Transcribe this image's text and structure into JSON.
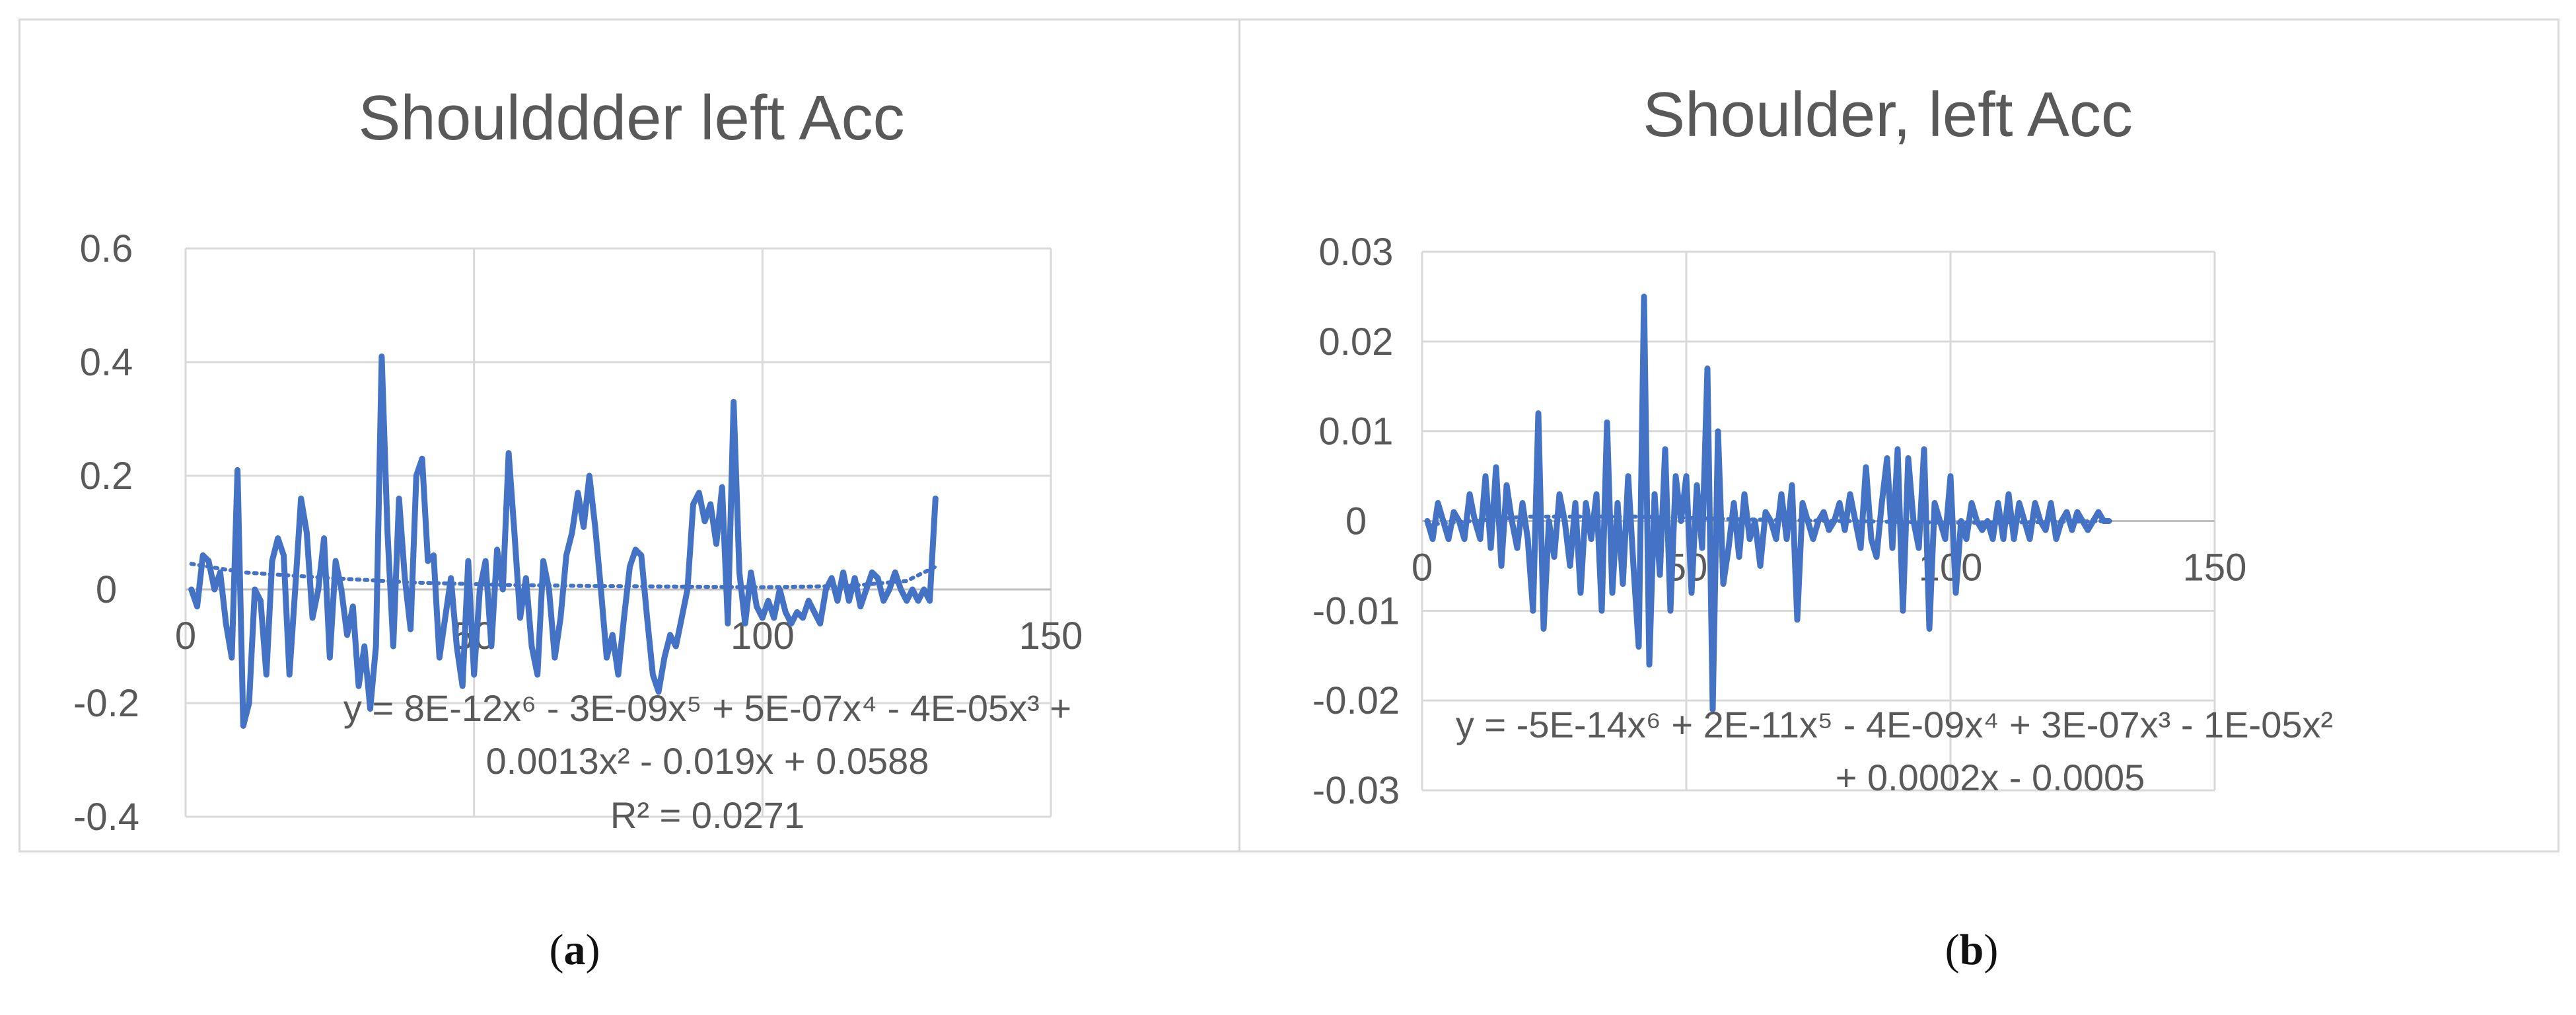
{
  "colors": {
    "series": "#4472c4",
    "grid": "#d9d9d9",
    "text": "#595959",
    "title": "#595959"
  },
  "chart_data": [
    {
      "type": "line",
      "title": "Shoulddder left  Acc",
      "ylim": [
        -0.4,
        0.6
      ],
      "xlim": [
        0,
        150
      ],
      "yticks": [
        "0.6",
        "0.4",
        "0.2",
        "0",
        "-0.2",
        "-0.4"
      ],
      "xticks": [
        "0",
        "50",
        "100",
        "150"
      ],
      "grid": "vertical and horizontal",
      "trendline": {
        "type": "polynomial-6",
        "style": "dotted",
        "equation_line1": "y = 8E-12x⁶ - 3E-09x⁵ + 5E-07x⁴ - 4E-05x³ +",
        "equation_line2": "0.0013x² - 0.019x + 0.0588",
        "r2": "R² = 0.0271",
        "x": [
          1,
          10,
          25,
          40,
          55,
          70,
          85,
          100,
          115,
          125,
          130
        ],
        "y": [
          0.045,
          0.03,
          0.02,
          0.012,
          0.008,
          0.006,
          0.005,
          0.004,
          0.006,
          0.015,
          0.04
        ]
      },
      "series": [
        {
          "x": [
            1,
            2,
            3,
            4,
            5,
            6,
            7,
            8,
            9,
            10,
            11,
            12,
            13,
            14,
            15,
            16,
            17,
            18,
            19,
            20,
            21,
            22,
            23,
            24,
            25,
            26,
            27,
            28,
            29,
            30,
            31,
            32,
            33,
            34,
            35,
            36,
            37,
            38,
            39,
            40,
            41,
            42,
            43,
            44,
            45,
            46,
            47,
            48,
            49,
            50,
            51,
            52,
            53,
            54,
            55,
            56,
            57,
            58,
            59,
            60,
            61,
            62,
            63,
            64,
            65,
            66,
            67,
            68,
            69,
            70,
            71,
            72,
            73,
            74,
            75,
            76,
            77,
            78,
            79,
            80,
            81,
            82,
            83,
            84,
            85,
            86,
            87,
            88,
            89,
            90,
            91,
            92,
            93,
            94,
            95,
            96,
            97,
            98,
            99,
            100,
            101,
            102,
            103,
            104,
            105,
            106,
            107,
            108,
            109,
            110,
            111,
            112,
            113,
            114,
            115,
            116,
            117,
            118,
            119,
            120,
            121,
            122,
            123,
            124,
            125,
            126,
            127,
            128,
            129,
            130
          ],
          "y": [
            0.0,
            -0.03,
            0.06,
            0.05,
            0.0,
            0.03,
            -0.06,
            -0.12,
            0.21,
            -0.24,
            -0.2,
            0.0,
            -0.02,
            -0.15,
            0.05,
            0.09,
            0.06,
            -0.15,
            0.0,
            0.16,
            0.1,
            -0.05,
            0.0,
            0.09,
            -0.12,
            0.05,
            0.0,
            -0.08,
            -0.03,
            -0.17,
            -0.1,
            -0.21,
            -0.1,
            0.41,
            0.1,
            -0.1,
            0.16,
            0.02,
            -0.07,
            0.2,
            0.23,
            0.05,
            0.06,
            -0.12,
            -0.05,
            0.02,
            -0.1,
            -0.17,
            0.05,
            -0.15,
            0.0,
            0.05,
            -0.1,
            0.07,
            0.0,
            0.24,
            0.1,
            -0.05,
            0.02,
            -0.1,
            -0.15,
            0.05,
            0.0,
            -0.12,
            -0.05,
            0.06,
            0.1,
            0.17,
            0.11,
            0.2,
            0.11,
            0.0,
            -0.12,
            -0.08,
            -0.15,
            -0.05,
            0.04,
            0.07,
            0.06,
            -0.05,
            -0.15,
            -0.18,
            -0.12,
            -0.08,
            -0.1,
            -0.05,
            0.0,
            0.15,
            0.17,
            0.12,
            0.15,
            0.08,
            0.18,
            -0.06,
            0.33,
            0.03,
            -0.06,
            0.03,
            -0.03,
            -0.05,
            -0.02,
            -0.05,
            0.0,
            -0.04,
            -0.06,
            -0.04,
            -0.05,
            -0.02,
            -0.04,
            -0.06,
            0.0,
            0.02,
            -0.02,
            0.03,
            -0.02,
            0.02,
            -0.03,
            0.0,
            0.03,
            0.02,
            -0.02,
            0.0,
            0.03,
            0.0,
            -0.02,
            0.0,
            -0.02,
            0.0,
            -0.02,
            0.16
          ]
        }
      ]
    },
    {
      "type": "line",
      "title": "Shoulder, left Acc",
      "ylim": [
        -0.03,
        0.03
      ],
      "xlim": [
        0,
        150
      ],
      "yticks": [
        "0.03",
        "0.02",
        "0.01",
        "0",
        "-0.01",
        "-0.02",
        "-0.03"
      ],
      "xticks": [
        "0",
        "50",
        "100",
        "150"
      ],
      "grid": "vertical and horizontal",
      "trendline": {
        "type": "polynomial-6",
        "style": "dotted",
        "equation_line1": "y = -5E-14x⁶ + 2E-11x⁵ - 4E-09x⁴ + 3E-07x³ - 1E-05x²",
        "equation_line2": "+ 0.0002x - 0.0005",
        "x": [
          1,
          20,
          40,
          60,
          80,
          100,
          120,
          130
        ],
        "y": [
          -0.0004,
          0.0005,
          0.0005,
          0.0002,
          0.0,
          -0.0002,
          -0.0001,
          0.0
        ]
      },
      "series": [
        {
          "x": [
            1,
            2,
            3,
            4,
            5,
            6,
            7,
            8,
            9,
            10,
            11,
            12,
            13,
            14,
            15,
            16,
            17,
            18,
            19,
            20,
            21,
            22,
            23,
            24,
            25,
            26,
            27,
            28,
            29,
            30,
            31,
            32,
            33,
            34,
            35,
            36,
            37,
            38,
            39,
            40,
            41,
            42,
            43,
            44,
            45,
            46,
            47,
            48,
            49,
            50,
            51,
            52,
            53,
            54,
            55,
            56,
            57,
            58,
            59,
            60,
            61,
            62,
            63,
            64,
            65,
            66,
            67,
            68,
            69,
            70,
            71,
            72,
            73,
            74,
            75,
            76,
            77,
            78,
            79,
            80,
            81,
            82,
            83,
            84,
            85,
            86,
            87,
            88,
            89,
            90,
            91,
            92,
            93,
            94,
            95,
            96,
            97,
            98,
            99,
            100,
            101,
            102,
            103,
            104,
            105,
            106,
            107,
            108,
            109,
            110,
            111,
            112,
            113,
            114,
            115,
            116,
            117,
            118,
            119,
            120,
            121,
            122,
            123,
            124,
            125,
            126,
            127,
            128,
            129,
            130
          ],
          "y": [
            0.0,
            -0.002,
            0.002,
            0.0,
            -0.002,
            0.001,
            0.0,
            -0.002,
            0.003,
            0.0,
            -0.002,
            0.005,
            -0.003,
            0.006,
            -0.005,
            0.004,
            0.0,
            -0.003,
            0.002,
            -0.002,
            -0.01,
            0.012,
            -0.012,
            0.0,
            -0.004,
            0.003,
            0.0,
            -0.005,
            0.002,
            -0.008,
            0.002,
            -0.002,
            0.003,
            -0.01,
            0.011,
            -0.008,
            0.002,
            -0.007,
            0.005,
            -0.005,
            -0.014,
            0.025,
            -0.016,
            0.003,
            -0.006,
            0.008,
            -0.01,
            0.005,
            0.0,
            0.005,
            -0.008,
            0.004,
            -0.003,
            0.017,
            -0.021,
            0.01,
            -0.007,
            -0.003,
            0.002,
            -0.004,
            0.003,
            -0.002,
            0.0,
            -0.005,
            0.001,
            0.0,
            -0.002,
            0.003,
            -0.002,
            0.004,
            -0.011,
            0.002,
            0.0,
            -0.002,
            0.0,
            0.001,
            -0.001,
            0.0,
            0.002,
            -0.001,
            0.003,
            0.0,
            -0.003,
            0.006,
            -0.002,
            -0.004,
            0.002,
            0.007,
            -0.003,
            0.008,
            -0.01,
            0.007,
            0.0,
            -0.003,
            0.008,
            -0.012,
            0.002,
            0.0,
            -0.002,
            0.005,
            -0.008,
            0.0,
            -0.002,
            0.002,
            0.0,
            -0.001,
            0.0,
            -0.002,
            0.002,
            -0.002,
            0.003,
            -0.002,
            0.002,
            0.0,
            -0.002,
            0.002,
            0.0,
            -0.001,
            0.002,
            -0.002,
            0.0,
            0.001,
            -0.001,
            0.001,
            0.0,
            -0.001,
            0.0,
            0.001,
            0.0,
            0.0
          ]
        }
      ]
    }
  ],
  "captions": [
    {
      "open": "(",
      "letter": "a",
      "close": ")"
    },
    {
      "open": "(",
      "letter": "b",
      "close": ")"
    }
  ]
}
